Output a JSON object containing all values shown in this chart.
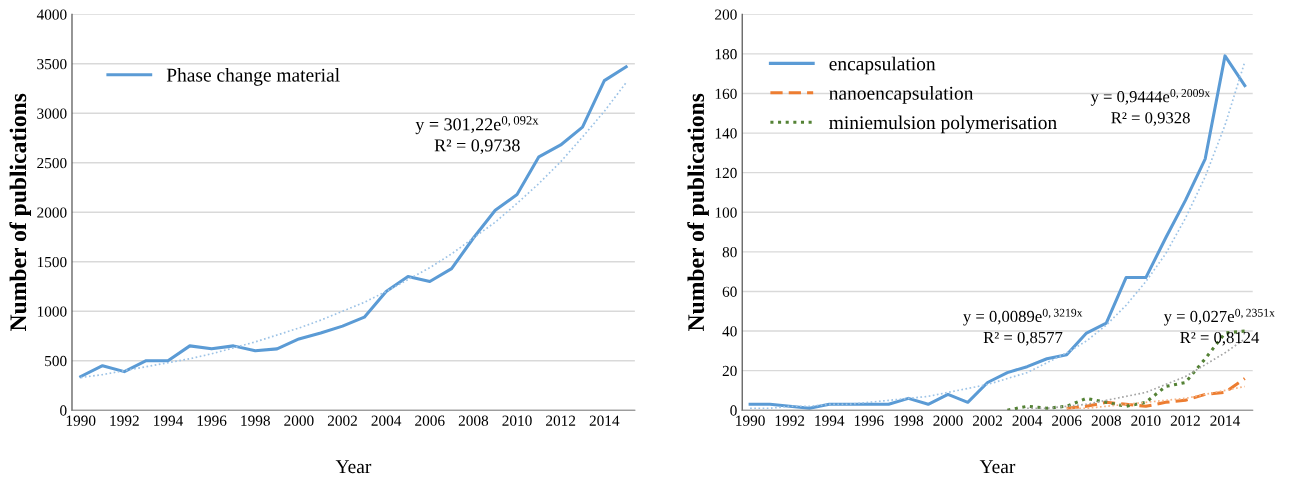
{
  "chart_data": [
    {
      "type": "line",
      "xlabel": "Year",
      "ylabel": "Number of publications",
      "x": [
        1990,
        1991,
        1992,
        1993,
        1994,
        1995,
        1996,
        1997,
        1998,
        1999,
        2000,
        2001,
        2002,
        2003,
        2004,
        2005,
        2006,
        2007,
        2008,
        2009,
        2010,
        2011,
        2012,
        2013,
        2014,
        2015
      ],
      "series": [
        {
          "name": "Phase change material",
          "color": "#5b9bd5",
          "line_style": "solid",
          "values": [
            340,
            450,
            390,
            500,
            500,
            650,
            620,
            650,
            600,
            620,
            720,
            780,
            850,
            940,
            1200,
            1350,
            1300,
            1430,
            1740,
            2020,
            2180,
            2560,
            2680,
            2860,
            3330,
            3470
          ]
        },
        {
          "color": "#9dc3e6",
          "line_style": "dotted",
          "values": [
            330,
            360,
            400,
            440,
            480,
            520,
            570,
            630,
            690,
            760,
            830,
            910,
            1000,
            1090,
            1200,
            1320,
            1440,
            1580,
            1740,
            1900,
            2090,
            2290,
            2510,
            2760,
            3020,
            3310
          ]
        }
      ],
      "xlim": [
        1989.6,
        2015.4
      ],
      "xticks": [
        1990,
        1992,
        1994,
        1996,
        1998,
        2000,
        2002,
        2004,
        2006,
        2008,
        2010,
        2012,
        2014
      ],
      "ylim": [
        0,
        4000
      ],
      "yticks": [
        0,
        500,
        1000,
        1500,
        2000,
        2500,
        3000,
        3500,
        4000
      ],
      "grid": "y",
      "legend": "top left",
      "marker": "none",
      "annotations": [
        "y = 301,22e$^{0,092x}$",
        "R² = 0,9738"
      ]
    },
    {
      "type": "line",
      "xlabel": "Year",
      "ylabel": "Number of publications",
      "x": [
        1990,
        1991,
        1992,
        1993,
        1994,
        1995,
        1996,
        1997,
        1998,
        1999,
        2000,
        2001,
        2002,
        2003,
        2004,
        2005,
        2006,
        2007,
        2008,
        2009,
        2010,
        2011,
        2012,
        2013,
        2014,
        2015
      ],
      "series": [
        {
          "name": "encapsulation",
          "color": "#5b9bd5",
          "line_style": "solid",
          "values": [
            3,
            3,
            2,
            1,
            3,
            3,
            3,
            3,
            6,
            3,
            8,
            4,
            14,
            19,
            22,
            26,
            28,
            39,
            44,
            67,
            67,
            87,
            106,
            127,
            179,
            164
          ]
        },
        {
          "name": "nanoencapsulation",
          "color": "#ed7d31",
          "line_style": "dashed",
          "values": [
            null,
            null,
            null,
            null,
            null,
            null,
            null,
            null,
            null,
            null,
            null,
            null,
            null,
            null,
            null,
            null,
            1,
            2,
            4,
            3,
            2,
            4,
            5,
            8,
            9,
            16
          ]
        },
        {
          "name": "miniemulsion polymerisation",
          "color": "#548235",
          "line_style": "dotted",
          "values": [
            null,
            null,
            null,
            null,
            null,
            null,
            null,
            null,
            null,
            null,
            null,
            null,
            null,
            0,
            2,
            1,
            2,
            6,
            4,
            2,
            4,
            12,
            14,
            26,
            39,
            40
          ]
        },
        {
          "color": "#9dc3e6",
          "line_style": "dotted",
          "values": [
            1,
            1,
            2,
            2,
            3,
            3,
            4,
            5,
            6,
            7,
            9,
            11,
            13,
            16,
            19,
            24,
            29,
            35,
            43,
            53,
            65,
            79,
            97,
            118,
            144,
            176
          ]
        },
        {
          "color": "#f4b183",
          "line_style": "dotted",
          "values": [
            null,
            null,
            null,
            null,
            null,
            null,
            null,
            null,
            null,
            null,
            null,
            null,
            null,
            null,
            null,
            null,
            1,
            1,
            2,
            3,
            4,
            5,
            6,
            8,
            10,
            12
          ]
        },
        {
          "color": "#a5a5a5",
          "line_style": "dotted",
          "values": [
            null,
            null,
            null,
            null,
            null,
            null,
            null,
            null,
            null,
            null,
            null,
            null,
            null,
            null,
            1,
            1,
            2,
            3,
            5,
            7,
            9,
            13,
            17,
            23,
            29,
            36
          ]
        }
      ],
      "xlim": [
        1989.6,
        2015.4
      ],
      "xticks": [
        1990,
        1992,
        1994,
        1996,
        1998,
        2000,
        2002,
        2004,
        2006,
        2008,
        2010,
        2012,
        2014
      ],
      "ylim": [
        0,
        200
      ],
      "yticks": [
        0,
        20,
        40,
        60,
        80,
        100,
        120,
        140,
        160,
        180,
        200
      ],
      "grid": "y",
      "legend": "top left",
      "marker": "none",
      "annotations": [
        "y = 0,9444e$^{0,2009x}$",
        "R² = 0,9328",
        "y = 0,0089e$^{0,3219x}$",
        "R² = 0,8577",
        "y = 0,027e$^{0,2351x}$",
        "R² = 0,8124"
      ]
    }
  ]
}
